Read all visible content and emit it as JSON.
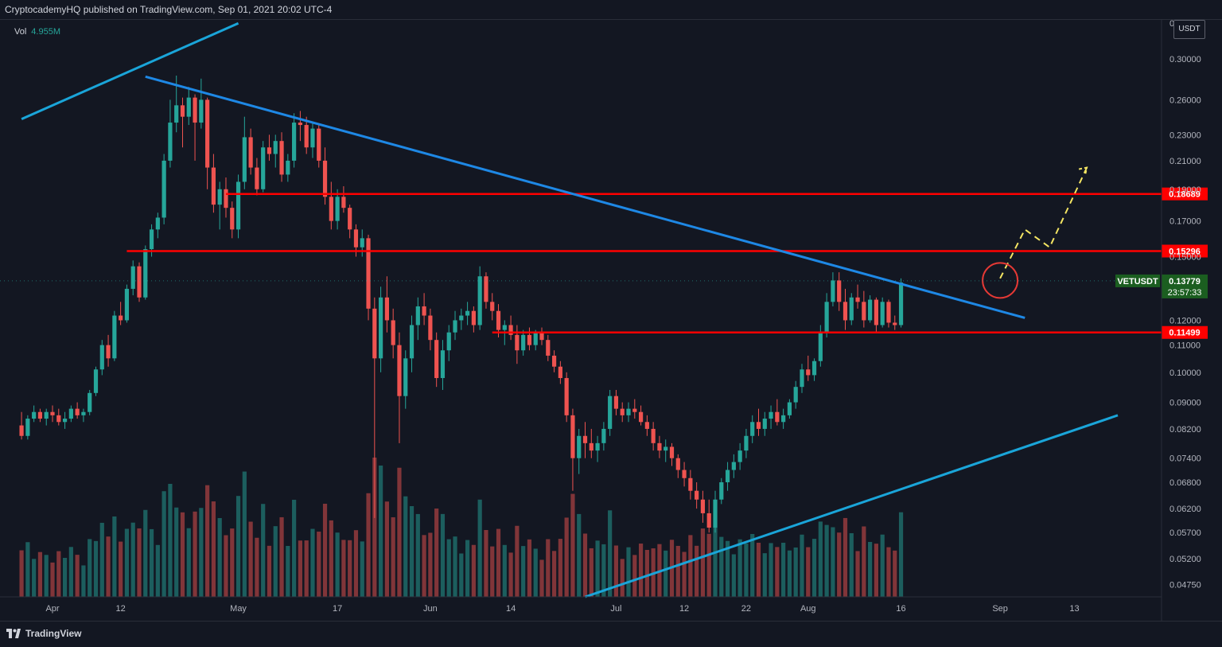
{
  "header": {
    "published_by": "CryptocademyHQ published on TradingView.com, Sep 01, 2021 20:02 UTC-4"
  },
  "volume": {
    "label": "Vol",
    "value": "4.955M"
  },
  "price_axis": {
    "currency": "USDT"
  },
  "last_price": {
    "symbol": "VETUSDT",
    "price": "0.13779",
    "countdown": "23:57:33"
  },
  "levels": [
    {
      "label": "0.18689",
      "price": 0.18689
    },
    {
      "label": "0.15296",
      "price": 0.15296
    },
    {
      "label": "0.11499",
      "price": 0.11499
    }
  ],
  "footer": {
    "brand": "TradingView"
  },
  "colors": {
    "background": "#131722",
    "up": "#26a69a",
    "down": "#ef5350",
    "level": "#ff0000",
    "trend_upper": "#1e88e5",
    "trend_cyan": "#1aa5d9",
    "projection": "#f5e663",
    "last_price_bg": "#1b5e20"
  },
  "chart_data": {
    "type": "candlestick",
    "symbol": "VETUSDT",
    "y_ticks": [
      "0.34000",
      "0.30000",
      "0.26000",
      "0.23000",
      "0.21000",
      "0.19000",
      "0.17000",
      "0.15000",
      "0.12000",
      "0.11000",
      "0.10000",
      "0.09000",
      "0.08200",
      "0.07400",
      "0.06800",
      "0.06200",
      "0.05700",
      "0.05200",
      "0.04750"
    ],
    "x_ticks": [
      "Apr",
      "12",
      "May",
      "17",
      "Jun",
      "14",
      "Jul",
      "12",
      "22",
      "Aug",
      "16",
      "Sep",
      "13"
    ],
    "scale": "log",
    "ylim": [
      0.0455,
      0.345
    ],
    "candles_start": "2021-03-27",
    "candles_ohlc": [
      [
        0.083,
        0.087,
        0.079,
        0.08
      ],
      [
        0.08,
        0.086,
        0.079,
        0.085
      ],
      [
        0.085,
        0.089,
        0.084,
        0.087
      ],
      [
        0.087,
        0.088,
        0.084,
        0.085
      ],
      [
        0.085,
        0.088,
        0.083,
        0.087
      ],
      [
        0.087,
        0.089,
        0.084,
        0.086
      ],
      [
        0.086,
        0.088,
        0.083,
        0.084
      ],
      [
        0.084,
        0.087,
        0.082,
        0.085
      ],
      [
        0.085,
        0.089,
        0.084,
        0.088
      ],
      [
        0.088,
        0.09,
        0.085,
        0.086
      ],
      [
        0.086,
        0.088,
        0.084,
        0.087
      ],
      [
        0.087,
        0.094,
        0.086,
        0.093
      ],
      [
        0.093,
        0.102,
        0.092,
        0.101
      ],
      [
        0.101,
        0.112,
        0.099,
        0.11
      ],
      [
        0.11,
        0.114,
        0.102,
        0.105
      ],
      [
        0.105,
        0.124,
        0.104,
        0.122
      ],
      [
        0.122,
        0.128,
        0.118,
        0.12
      ],
      [
        0.12,
        0.136,
        0.119,
        0.134
      ],
      [
        0.134,
        0.148,
        0.131,
        0.145
      ],
      [
        0.145,
        0.147,
        0.128,
        0.13
      ],
      [
        0.13,
        0.156,
        0.129,
        0.154
      ],
      [
        0.154,
        0.168,
        0.15,
        0.165
      ],
      [
        0.165,
        0.175,
        0.16,
        0.172
      ],
      [
        0.172,
        0.215,
        0.168,
        0.21
      ],
      [
        0.21,
        0.26,
        0.205,
        0.24
      ],
      [
        0.24,
        0.283,
        0.232,
        0.255
      ],
      [
        0.255,
        0.262,
        0.22,
        0.245
      ],
      [
        0.245,
        0.272,
        0.238,
        0.262
      ],
      [
        0.262,
        0.265,
        0.21,
        0.24
      ],
      [
        0.24,
        0.28,
        0.235,
        0.26
      ],
      [
        0.26,
        0.262,
        0.19,
        0.205
      ],
      [
        0.205,
        0.215,
        0.175,
        0.18
      ],
      [
        0.18,
        0.195,
        0.165,
        0.19
      ],
      [
        0.19,
        0.198,
        0.172,
        0.178
      ],
      [
        0.178,
        0.182,
        0.16,
        0.165
      ],
      [
        0.165,
        0.2,
        0.16,
        0.195
      ],
      [
        0.195,
        0.245,
        0.19,
        0.228
      ],
      [
        0.228,
        0.235,
        0.2,
        0.205
      ],
      [
        0.205,
        0.212,
        0.186,
        0.19
      ],
      [
        0.19,
        0.225,
        0.188,
        0.22
      ],
      [
        0.22,
        0.23,
        0.21,
        0.215
      ],
      [
        0.215,
        0.23,
        0.205,
        0.225
      ],
      [
        0.225,
        0.232,
        0.195,
        0.2
      ],
      [
        0.2,
        0.215,
        0.195,
        0.21
      ],
      [
        0.21,
        0.248,
        0.205,
        0.24
      ],
      [
        0.24,
        0.25,
        0.225,
        0.238
      ],
      [
        0.238,
        0.245,
        0.215,
        0.22
      ],
      [
        0.22,
        0.24,
        0.212,
        0.235
      ],
      [
        0.235,
        0.238,
        0.205,
        0.21
      ],
      [
        0.21,
        0.22,
        0.18,
        0.185
      ],
      [
        0.185,
        0.195,
        0.165,
        0.17
      ],
      [
        0.17,
        0.19,
        0.165,
        0.185
      ],
      [
        0.185,
        0.192,
        0.175,
        0.178
      ],
      [
        0.178,
        0.18,
        0.16,
        0.165
      ],
      [
        0.165,
        0.168,
        0.15,
        0.155
      ],
      [
        0.155,
        0.165,
        0.15,
        0.16
      ],
      [
        0.16,
        0.162,
        0.12,
        0.125
      ],
      [
        0.125,
        0.13,
        0.06,
        0.105
      ],
      [
        0.105,
        0.135,
        0.1,
        0.13
      ],
      [
        0.13,
        0.14,
        0.115,
        0.12
      ],
      [
        0.12,
        0.125,
        0.105,
        0.11
      ],
      [
        0.11,
        0.115,
        0.078,
        0.092
      ],
      [
        0.092,
        0.108,
        0.088,
        0.105
      ],
      [
        0.105,
        0.122,
        0.1,
        0.118
      ],
      [
        0.118,
        0.13,
        0.112,
        0.126
      ],
      [
        0.126,
        0.132,
        0.118,
        0.122
      ],
      [
        0.122,
        0.125,
        0.108,
        0.112
      ],
      [
        0.112,
        0.115,
        0.095,
        0.098
      ],
      [
        0.098,
        0.112,
        0.094,
        0.108
      ],
      [
        0.108,
        0.118,
        0.104,
        0.115
      ],
      [
        0.115,
        0.124,
        0.112,
        0.12
      ],
      [
        0.12,
        0.125,
        0.116,
        0.122
      ],
      [
        0.122,
        0.128,
        0.118,
        0.124
      ],
      [
        0.124,
        0.126,
        0.115,
        0.118
      ],
      [
        0.118,
        0.145,
        0.116,
        0.14
      ],
      [
        0.14,
        0.142,
        0.125,
        0.128
      ],
      [
        0.128,
        0.132,
        0.12,
        0.124
      ],
      [
        0.124,
        0.127,
        0.113,
        0.116
      ],
      [
        0.116,
        0.12,
        0.11,
        0.118
      ],
      [
        0.118,
        0.122,
        0.112,
        0.114
      ],
      [
        0.114,
        0.118,
        0.103,
        0.108
      ],
      [
        0.108,
        0.116,
        0.106,
        0.114
      ],
      [
        0.114,
        0.117,
        0.108,
        0.11
      ],
      [
        0.11,
        0.116,
        0.108,
        0.115
      ],
      [
        0.115,
        0.117,
        0.11,
        0.112
      ],
      [
        0.112,
        0.114,
        0.104,
        0.106
      ],
      [
        0.106,
        0.108,
        0.1,
        0.102
      ],
      [
        0.102,
        0.104,
        0.096,
        0.098
      ],
      [
        0.098,
        0.1,
        0.084,
        0.086
      ],
      [
        0.086,
        0.088,
        0.066,
        0.074
      ],
      [
        0.074,
        0.082,
        0.07,
        0.08
      ],
      [
        0.08,
        0.084,
        0.074,
        0.078
      ],
      [
        0.078,
        0.082,
        0.074,
        0.076
      ],
      [
        0.076,
        0.08,
        0.073,
        0.078
      ],
      [
        0.078,
        0.084,
        0.076,
        0.082
      ],
      [
        0.082,
        0.094,
        0.08,
        0.092
      ],
      [
        0.092,
        0.094,
        0.086,
        0.088
      ],
      [
        0.088,
        0.09,
        0.084,
        0.086
      ],
      [
        0.086,
        0.09,
        0.084,
        0.088
      ],
      [
        0.088,
        0.091,
        0.085,
        0.087
      ],
      [
        0.087,
        0.089,
        0.083,
        0.084
      ],
      [
        0.084,
        0.086,
        0.08,
        0.082
      ],
      [
        0.082,
        0.084,
        0.076,
        0.078
      ],
      [
        0.078,
        0.08,
        0.074,
        0.076
      ],
      [
        0.076,
        0.079,
        0.073,
        0.077
      ],
      [
        0.077,
        0.078,
        0.072,
        0.074
      ],
      [
        0.074,
        0.075,
        0.069,
        0.071
      ],
      [
        0.071,
        0.073,
        0.067,
        0.069
      ],
      [
        0.069,
        0.071,
        0.064,
        0.066
      ],
      [
        0.066,
        0.068,
        0.062,
        0.064
      ],
      [
        0.064,
        0.066,
        0.059,
        0.061
      ],
      [
        0.061,
        0.064,
        0.057,
        0.058
      ],
      [
        0.058,
        0.066,
        0.057,
        0.064
      ],
      [
        0.064,
        0.069,
        0.063,
        0.068
      ],
      [
        0.068,
        0.073,
        0.066,
        0.071
      ],
      [
        0.071,
        0.075,
        0.069,
        0.073
      ],
      [
        0.073,
        0.078,
        0.071,
        0.076
      ],
      [
        0.076,
        0.082,
        0.074,
        0.08
      ],
      [
        0.08,
        0.086,
        0.078,
        0.084
      ],
      [
        0.084,
        0.088,
        0.08,
        0.082
      ],
      [
        0.082,
        0.087,
        0.08,
        0.085
      ],
      [
        0.085,
        0.089,
        0.082,
        0.087
      ],
      [
        0.087,
        0.091,
        0.083,
        0.084
      ],
      [
        0.084,
        0.088,
        0.082,
        0.086
      ],
      [
        0.086,
        0.091,
        0.085,
        0.09
      ],
      [
        0.09,
        0.097,
        0.088,
        0.095
      ],
      [
        0.095,
        0.103,
        0.093,
        0.101
      ],
      [
        0.101,
        0.106,
        0.097,
        0.099
      ],
      [
        0.099,
        0.105,
        0.097,
        0.104
      ],
      [
        0.104,
        0.118,
        0.102,
        0.115
      ],
      [
        0.115,
        0.132,
        0.113,
        0.128
      ],
      [
        0.128,
        0.142,
        0.126,
        0.138
      ],
      [
        0.138,
        0.142,
        0.124,
        0.128
      ],
      [
        0.128,
        0.134,
        0.116,
        0.12
      ],
      [
        0.12,
        0.132,
        0.118,
        0.13
      ],
      [
        0.13,
        0.136,
        0.125,
        0.128
      ],
      [
        0.128,
        0.133,
        0.117,
        0.12
      ],
      [
        0.12,
        0.131,
        0.119,
        0.129
      ],
      [
        0.129,
        0.13,
        0.115,
        0.118
      ],
      [
        0.118,
        0.13,
        0.117,
        0.128
      ],
      [
        0.128,
        0.129,
        0.117,
        0.119
      ],
      [
        0.119,
        0.122,
        0.116,
        0.118
      ],
      [
        0.118,
        0.139,
        0.117,
        0.137
      ]
    ],
    "overlays": {
      "horizontal_levels": [
        0.18689,
        0.15296,
        0.11499
      ],
      "descending_trendline": "2021-04-16 0.282 to 2021-09-05 0.121",
      "ascending_trendline_upper": "2021-03-27 0.243 to 2021-05-01 0.340",
      "ascending_trendline_lower": "2021-06-26 0.0455 to 2021-09-20 0.086",
      "projection_path": [
        [
          "2021-09-01",
          0.139
        ],
        [
          "2021-09-05",
          0.165
        ],
        [
          "2021-09-09",
          0.155
        ],
        [
          "2021-09-15",
          0.205
        ]
      ],
      "highlight_circle": "2021-09-01 0.138"
    }
  }
}
